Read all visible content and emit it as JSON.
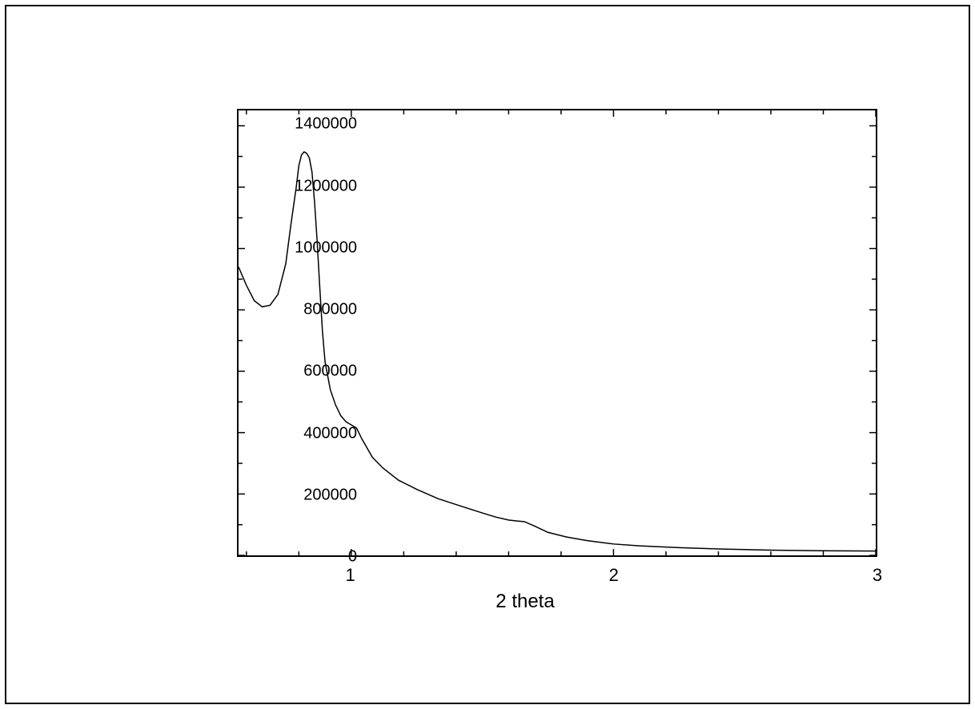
{
  "chart": {
    "type": "line",
    "xlabel": "2 theta",
    "xlabel_fontsize": 24,
    "tick_fontsize": 20,
    "background_color": "#ffffff",
    "border_color": "#000000",
    "line_color": "#000000",
    "line_width": 1.5,
    "xlim": [
      0.57,
      3.0
    ],
    "ylim": [
      0,
      1450000
    ],
    "xticks": [
      1,
      2,
      3
    ],
    "xtick_labels": [
      "1",
      "2",
      "3"
    ],
    "xminor_step": 0.2,
    "yticks": [
      0,
      200000,
      400000,
      600000,
      800000,
      1000000,
      1200000,
      1400000
    ],
    "ytick_labels": [
      "0",
      "200000",
      "400000",
      "600000",
      "800000",
      "1000000",
      "1200000",
      "1400000"
    ],
    "yminor_step": 100000,
    "major_tick_len": 8,
    "minor_tick_len": 5,
    "series": {
      "x": [
        0.57,
        0.6,
        0.63,
        0.66,
        0.69,
        0.72,
        0.75,
        0.77,
        0.79,
        0.8,
        0.81,
        0.82,
        0.83,
        0.84,
        0.85,
        0.86,
        0.87,
        0.88,
        0.89,
        0.9,
        0.92,
        0.94,
        0.96,
        0.98,
        1.0,
        1.02,
        1.04,
        1.08,
        1.12,
        1.18,
        1.25,
        1.33,
        1.42,
        1.5,
        1.55,
        1.6,
        1.63,
        1.66,
        1.7,
        1.75,
        1.82,
        1.9,
        2.0,
        2.1,
        2.25,
        2.4,
        2.6,
        2.8,
        3.0
      ],
      "y": [
        940000,
        880000,
        830000,
        810000,
        815000,
        850000,
        950000,
        1080000,
        1200000,
        1270000,
        1305000,
        1315000,
        1310000,
        1295000,
        1250000,
        1150000,
        1020000,
        870000,
        730000,
        630000,
        540000,
        490000,
        455000,
        435000,
        425000,
        415000,
        380000,
        320000,
        285000,
        245000,
        215000,
        185000,
        160000,
        138000,
        125000,
        115000,
        112000,
        110000,
        95000,
        75000,
        60000,
        48000,
        37000,
        31000,
        25000,
        21000,
        17000,
        15000,
        14000
      ]
    }
  }
}
